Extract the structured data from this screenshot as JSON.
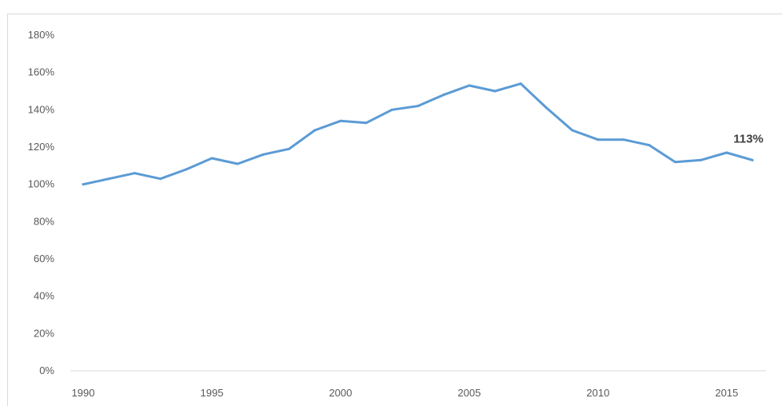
{
  "chart_data": {
    "type": "line",
    "title": "",
    "xlabel": "",
    "ylabel": "",
    "x": [
      1990,
      1991,
      1992,
      1993,
      1994,
      1995,
      1996,
      1997,
      1998,
      1999,
      2000,
      2001,
      2002,
      2003,
      2004,
      2005,
      2006,
      2007,
      2008,
      2009,
      2010,
      2011,
      2012,
      2013,
      2014,
      2015,
      2016
    ],
    "series": [
      {
        "values": [
          100,
          103,
          106,
          103,
          108,
          114,
          111,
          116,
          119,
          129,
          134,
          133,
          140,
          142,
          148,
          153,
          150,
          154,
          141,
          129,
          124,
          124,
          121,
          112,
          113,
          117,
          113
        ],
        "color": "#5b9bd5"
      }
    ],
    "xlim": [
      1990,
      2016
    ],
    "ylim": [
      0,
      180
    ],
    "y_ticks": [
      "0%",
      "20%",
      "40%",
      "60%",
      "80%",
      "100%",
      "120%",
      "140%",
      "160%",
      "180%"
    ],
    "x_ticks": [
      "1990",
      "1995",
      "2000",
      "2005",
      "2010",
      "2015"
    ],
    "annotation": {
      "x": 2016,
      "text": "113%"
    },
    "grid": false,
    "legend": "none"
  }
}
